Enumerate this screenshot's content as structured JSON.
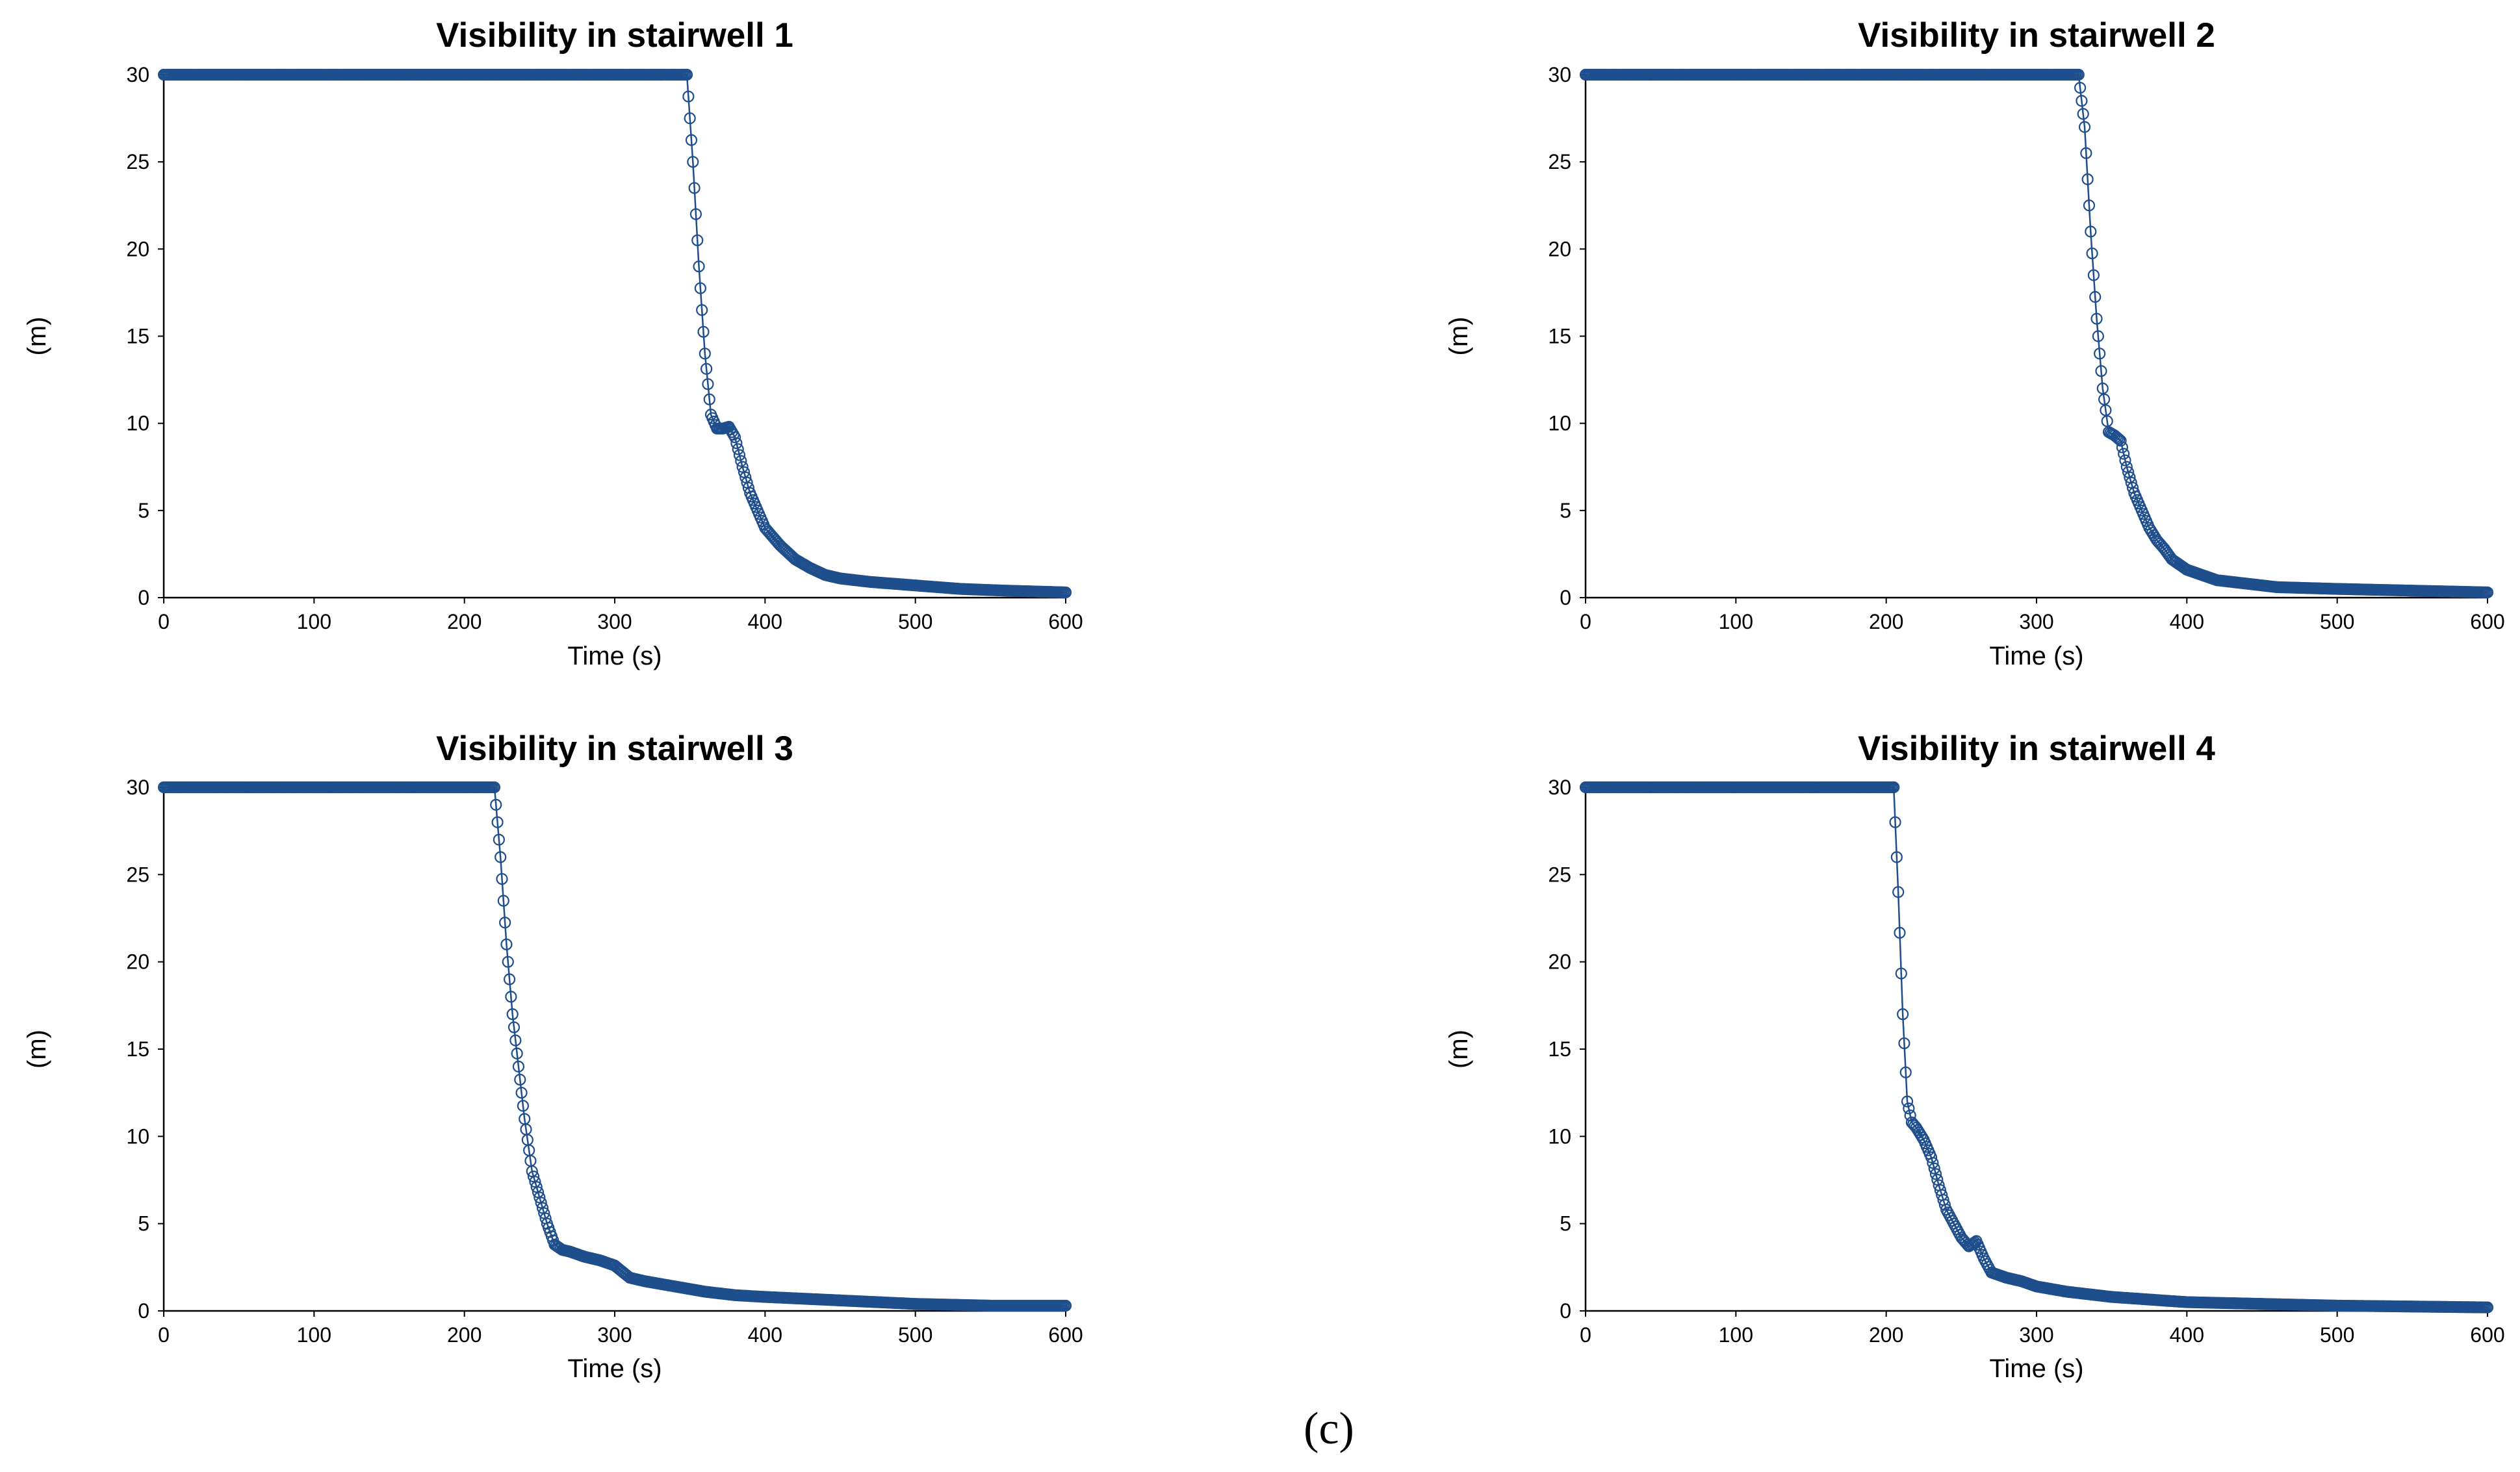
{
  "figure_caption": "(c)",
  "series_color": "#1f4e8c",
  "chart_data": [
    {
      "type": "line",
      "title": "Visibility in stairwell 1",
      "xlabel": "Time (s)",
      "ylabel": "(m)",
      "xlim": [
        0,
        600
      ],
      "ylim": [
        0,
        30
      ],
      "xticks": [
        0,
        100,
        200,
        300,
        400,
        500,
        600
      ],
      "yticks": [
        0,
        5,
        10,
        15,
        20,
        25,
        30
      ],
      "series": [
        {
          "name": "Visibility",
          "x": [
            0,
            348,
            352,
            356,
            360,
            364,
            368,
            372,
            376,
            380,
            385,
            390,
            395,
            400,
            410,
            420,
            430,
            440,
            450,
            470,
            500,
            530,
            560,
            600
          ],
          "y": [
            30,
            30,
            25,
            19,
            14,
            10.5,
            9.7,
            9.7,
            9.8,
            9.2,
            7.5,
            6.0,
            5.0,
            4.0,
            3.0,
            2.2,
            1.7,
            1.3,
            1.1,
            0.9,
            0.7,
            0.5,
            0.4,
            0.3
          ]
        }
      ]
    },
    {
      "type": "line",
      "title": "Visibility in stairwell 2",
      "xlabel": "Time (s)",
      "ylabel": "(m)",
      "xlim": [
        0,
        600
      ],
      "ylim": [
        0,
        30
      ],
      "xticks": [
        0,
        100,
        200,
        300,
        400,
        500,
        600
      ],
      "yticks": [
        0,
        5,
        10,
        15,
        20,
        25,
        30
      ],
      "series": [
        {
          "name": "Visibility",
          "x": [
            0,
            328,
            332,
            336,
            340,
            344,
            348,
            352,
            356,
            360,
            365,
            370,
            375,
            380,
            385,
            390,
            400,
            410,
            420,
            440,
            460,
            500,
            550,
            600
          ],
          "y": [
            30,
            30,
            27,
            21,
            16,
            12,
            9.5,
            9.3,
            9.0,
            7.5,
            6.0,
            5.0,
            4.0,
            3.3,
            2.8,
            2.2,
            1.6,
            1.3,
            1.0,
            0.8,
            0.6,
            0.5,
            0.4,
            0.3
          ]
        }
      ]
    },
    {
      "type": "line",
      "title": "Visibility in stairwell 3",
      "xlabel": "Time (s)",
      "ylabel": "(m)",
      "xlim": [
        0,
        600
      ],
      "ylim": [
        0,
        30
      ],
      "xticks": [
        0,
        100,
        200,
        300,
        400,
        500,
        600
      ],
      "yticks": [
        0,
        5,
        10,
        15,
        20,
        25,
        30
      ],
      "series": [
        {
          "name": "Visibility",
          "x": [
            0,
            220,
            224,
            228,
            232,
            236,
            240,
            245,
            250,
            255,
            260,
            265,
            270,
            280,
            290,
            300,
            310,
            320,
            340,
            360,
            380,
            400,
            450,
            500,
            550,
            600
          ],
          "y": [
            30,
            30,
            26,
            21,
            17,
            14,
            11,
            8,
            6.5,
            5.0,
            3.8,
            3.5,
            3.4,
            3.1,
            2.9,
            2.6,
            1.9,
            1.7,
            1.4,
            1.1,
            0.9,
            0.8,
            0.6,
            0.4,
            0.3,
            0.3
          ]
        }
      ]
    },
    {
      "type": "line",
      "title": "Visibility in stairwell 4",
      "xlabel": "Time (s)",
      "ylabel": "(m)",
      "xlim": [
        0,
        600
      ],
      "ylim": [
        0,
        30
      ],
      "xticks": [
        0,
        100,
        200,
        300,
        400,
        500,
        600
      ],
      "yticks": [
        0,
        5,
        10,
        15,
        20,
        25,
        30
      ],
      "series": [
        {
          "name": "Visibility",
          "x": [
            0,
            205,
            208,
            211,
            214,
            217,
            220,
            225,
            230,
            235,
            240,
            245,
            250,
            255,
            260,
            265,
            270,
            280,
            290,
            300,
            320,
            350,
            400,
            450,
            500,
            600
          ],
          "y": [
            30,
            30,
            24,
            17,
            12,
            10.8,
            10.5,
            9.8,
            8.8,
            7.2,
            5.8,
            5.0,
            4.2,
            3.7,
            4.0,
            3.0,
            2.2,
            1.9,
            1.7,
            1.4,
            1.1,
            0.8,
            0.5,
            0.4,
            0.3,
            0.2
          ]
        }
      ]
    }
  ]
}
